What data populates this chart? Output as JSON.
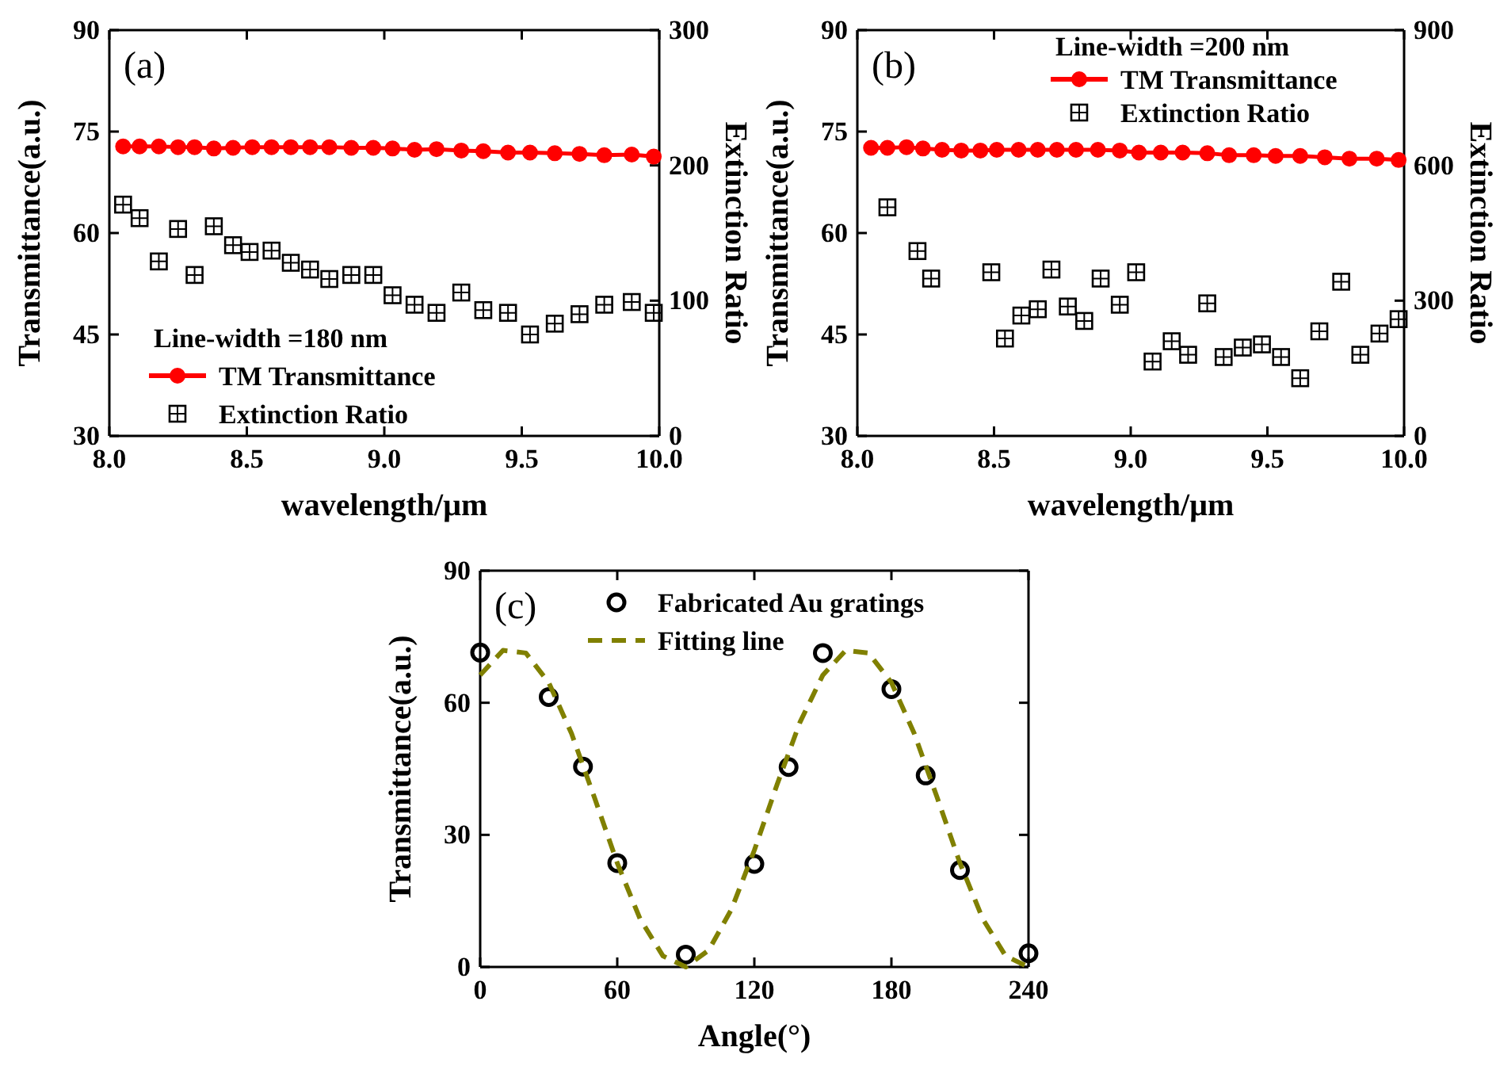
{
  "chart_data": [
    {
      "type": "line",
      "annotations": [
        "(a)"
      ],
      "xlabel": "wavelength/μm",
      "ylabel": "Transmittance(a.u.)",
      "y2label": "Extinction Ratio",
      "legend_title": "Line-width =180 nm",
      "legend": "bottom left",
      "xlim": [
        8,
        10
      ],
      "xticks": [
        {
          "value": 8,
          "label": "8.0"
        },
        {
          "value": 8.5,
          "label": "8.5"
        },
        {
          "value": 9,
          "label": "9.0"
        },
        {
          "value": 9.5,
          "label": "9.5"
        },
        {
          "value": 10,
          "label": "10.0"
        }
      ],
      "ylim": [
        30,
        90
      ],
      "yticks": [
        30,
        45,
        60,
        75,
        90
      ],
      "y2lim": [
        0,
        300
      ],
      "y2ticks": [
        0,
        100,
        200,
        300
      ],
      "series": [
        {
          "name": "TM Transmittance",
          "color": "#ff0000",
          "marker": "circle",
          "x": [
            8.05,
            8.11,
            8.18,
            8.25,
            8.31,
            8.38,
            8.45,
            8.52,
            8.59,
            8.66,
            8.73,
            8.8,
            8.88,
            8.96,
            9.03,
            9.11,
            9.19,
            9.28,
            9.36,
            9.45,
            9.53,
            9.62,
            9.71,
            9.8,
            9.9,
            9.98
          ],
          "values": [
            72.8,
            72.8,
            72.8,
            72.7,
            72.7,
            72.5,
            72.6,
            72.7,
            72.7,
            72.7,
            72.7,
            72.7,
            72.6,
            72.6,
            72.5,
            72.3,
            72.4,
            72.2,
            72.1,
            71.9,
            71.9,
            71.8,
            71.7,
            71.5,
            71.6,
            71.3
          ]
        },
        {
          "name": "Extinction Ratio",
          "type": "scatter",
          "axis": "y2",
          "color": "#000000",
          "marker": "square",
          "x": [
            8.05,
            8.11,
            8.18,
            8.25,
            8.31,
            8.38,
            8.45,
            8.51,
            8.59,
            8.66,
            8.73,
            8.8,
            8.88,
            8.96,
            9.03,
            9.11,
            9.19,
            9.28,
            9.36,
            9.45,
            9.53,
            9.62,
            9.71,
            9.8,
            9.9,
            9.98
          ],
          "values": [
            171,
            161,
            129,
            153,
            119,
            155,
            141,
            136,
            137,
            128,
            123,
            116,
            119,
            119,
            104,
            97,
            91,
            106,
            93,
            91,
            75,
            83,
            90,
            97,
            99,
            91
          ]
        }
      ]
    },
    {
      "type": "line",
      "annotations": [
        "(b)"
      ],
      "xlabel": "wavelength/μm",
      "ylabel": "Transmittance(a.u.)",
      "y2label": "Extinction Ratio",
      "legend_title": "Line-width =200 nm",
      "legend": "top right",
      "xlim": [
        8,
        10
      ],
      "xticks": [
        {
          "value": 8,
          "label": "8.0"
        },
        {
          "value": 8.5,
          "label": "8.5"
        },
        {
          "value": 9,
          "label": "9.0"
        },
        {
          "value": 9.5,
          "label": "9.5"
        },
        {
          "value": 10,
          "label": "10.0"
        }
      ],
      "ylim": [
        30,
        90
      ],
      "yticks": [
        30,
        45,
        60,
        75,
        90
      ],
      "y2lim": [
        0,
        900
      ],
      "y2ticks": [
        0,
        300,
        600,
        900
      ],
      "series": [
        {
          "name": "TM Transmittance",
          "color": "#ff0000",
          "marker": "circle",
          "x": [
            8.05,
            8.11,
            8.18,
            8.24,
            8.31,
            8.38,
            8.45,
            8.51,
            8.59,
            8.66,
            8.73,
            8.8,
            8.88,
            8.96,
            9.03,
            9.11,
            9.19,
            9.28,
            9.36,
            9.45,
            9.53,
            9.62,
            9.71,
            9.8,
            9.9,
            9.98
          ],
          "values": [
            72.6,
            72.6,
            72.7,
            72.5,
            72.3,
            72.2,
            72.2,
            72.3,
            72.3,
            72.3,
            72.3,
            72.3,
            72.3,
            72.2,
            71.9,
            71.9,
            71.9,
            71.8,
            71.5,
            71.5,
            71.4,
            71.4,
            71.2,
            71.0,
            71.0,
            70.8
          ]
        },
        {
          "name": "Extinction Ratio",
          "type": "scatter",
          "axis": "y2",
          "color": "#000000",
          "marker": "square",
          "x": [
            8.11,
            8.22,
            8.27,
            8.49,
            8.54,
            8.6,
            8.66,
            8.71,
            8.77,
            8.83,
            8.89,
            8.96,
            9.02,
            9.08,
            9.15,
            9.21,
            9.28,
            9.34,
            9.41,
            9.48,
            9.55,
            9.62,
            9.69,
            9.77,
            9.84,
            9.91,
            9.98
          ],
          "values": [
            507,
            410,
            349,
            363,
            216,
            267,
            281,
            369,
            287,
            255,
            349,
            291,
            363,
            165,
            210,
            180,
            294,
            175,
            196,
            203,
            175,
            128,
            232,
            342,
            180,
            227,
            259
          ]
        }
      ]
    },
    {
      "type": "scatter",
      "annotations": [
        "(c)"
      ],
      "xlabel": "Angle(°)",
      "ylabel": "Transmittance(a.u.)",
      "legend": "top",
      "xlim": [
        0,
        240
      ],
      "xticks": [
        0,
        60,
        120,
        180,
        240
      ],
      "ylim": [
        0,
        90
      ],
      "yticks": [
        0,
        30,
        60,
        90
      ],
      "series": [
        {
          "name": "Fabricated Au gratings",
          "color": "#000000",
          "marker": "circle",
          "x": [
            0,
            30,
            45,
            60,
            90,
            120,
            135,
            150,
            180,
            195,
            210,
            240
          ],
          "values": [
            71.4,
            61.3,
            45.5,
            23.6,
            2.8,
            23.4,
            45.4,
            71.3,
            63.1,
            43.5,
            22.0,
            3.1
          ]
        },
        {
          "name": "Fitting line",
          "type": "line",
          "color": "#808000",
          "marker": "none",
          "line_style": "dashed",
          "x": [
            0,
            10,
            20,
            30,
            40,
            50,
            60,
            70,
            80,
            90,
            100,
            110,
            120,
            130,
            140,
            150,
            160,
            170,
            180,
            190,
            200,
            210,
            220,
            230,
            240
          ],
          "values": [
            66.3,
            71.9,
            71.3,
            64.6,
            53.0,
            38.5,
            23.6,
            10.9,
            2.5,
            0.0,
            3.8,
            13.1,
            26.5,
            41.5,
            55.6,
            66.3,
            71.9,
            71.3,
            64.6,
            53.0,
            38.5,
            23.6,
            10.9,
            2.5,
            0.0
          ]
        }
      ]
    }
  ]
}
